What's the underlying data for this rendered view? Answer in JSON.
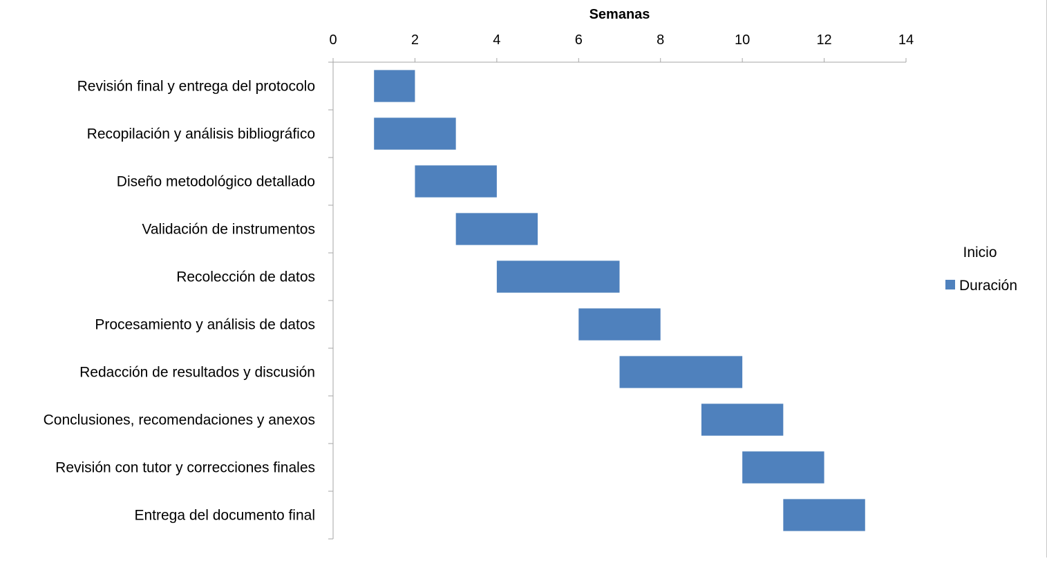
{
  "chart_data": {
    "type": "bar",
    "orientation": "horizontal",
    "stacked": true,
    "xlabel": "Semanas",
    "xlim": [
      0,
      14
    ],
    "x_ticks": [
      0,
      2,
      4,
      6,
      8,
      10,
      12,
      14
    ],
    "x_axis_position": "top",
    "grid": false,
    "legend_position": "right",
    "categories": [
      "Revisión final y entrega del protocolo",
      "Recopilación y análisis bibliográfico",
      "Diseño metodológico detallado",
      "Validación de instrumentos",
      "Recolección de datos",
      "Procesamiento y análisis de datos",
      "Redacción de resultados y discusión",
      "Conclusiones, recomendaciones y anexos",
      "Revisión con tutor y correcciones finales",
      "Entrega del documento final"
    ],
    "series": [
      {
        "name": "Inicio",
        "values": [
          1,
          1,
          2,
          3,
          4,
          6,
          7,
          9,
          10,
          11
        ],
        "color": "none"
      },
      {
        "name": "Duración",
        "values": [
          1,
          2,
          2,
          2,
          3,
          2,
          3,
          2,
          2,
          2
        ],
        "color": "#4f81bd"
      }
    ]
  }
}
